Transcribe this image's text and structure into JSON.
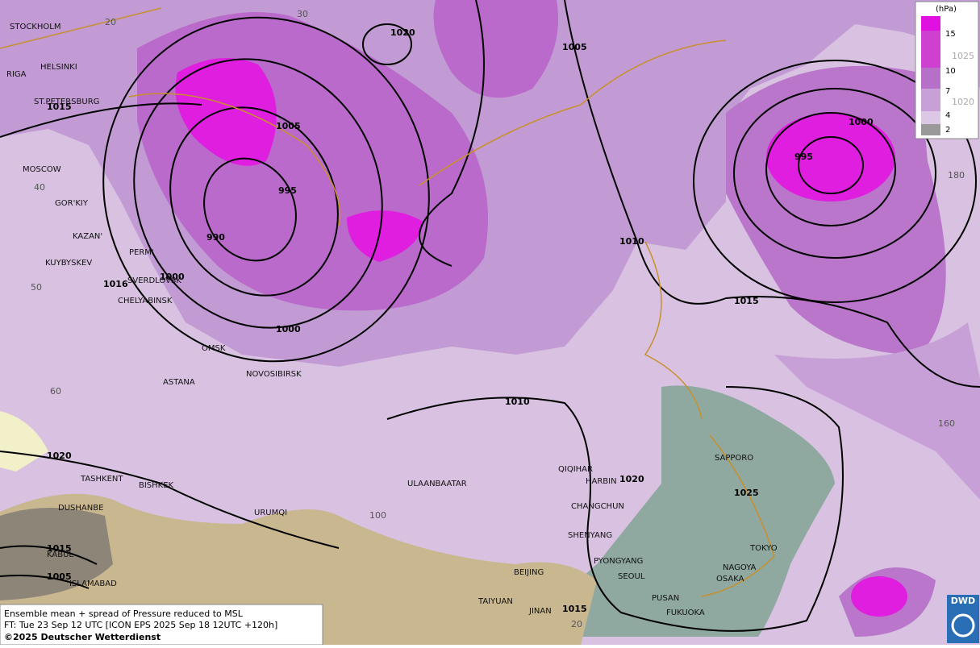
{
  "map": {
    "cities": [
      "STOCKHOLM",
      "HELSINKI",
      "RIGA",
      "ST.PETERSBURG",
      "MOSCOW",
      "GOR'KIY",
      "KAZAN'",
      "PERM'",
      "KUYBYSKEV",
      "SVERDLOVSK",
      "CHELYABINSK",
      "OMSK",
      "ASTANA",
      "NOVOSIBIRSK",
      "TASHKENT",
      "BISHKEK",
      "DUSHANBE",
      "URUMQI",
      "ULAANBAATAR",
      "QIQIHAR",
      "HARBIN",
      "CHANGCHUN",
      "SHENYANG",
      "PYONGYANG",
      "SEOUL",
      "BEIJING",
      "TAIYUAN",
      "JINAN",
      "PUSAN",
      "FUKUOKA",
      "OSAKA",
      "NAGOYA",
      "TOKYO",
      "SAPPORO",
      "KABUL",
      "ISLAMABAD"
    ],
    "isobar_labels": [
      1020,
      1005,
      1015,
      1005,
      995,
      990,
      1010,
      1000,
      995,
      1015,
      1016,
      1000,
      1000,
      1010,
      1020,
      1020,
      1025,
      1015,
      1005,
      1015
    ],
    "grid_labels": [
      20,
      30,
      40,
      50,
      60,
      100,
      180,
      160,
      20,
      1025,
      1020
    ]
  },
  "legend": {
    "unit": "(hPa)",
    "levels": [
      15,
      10,
      7,
      4,
      2
    ]
  },
  "footer": {
    "line1": "Ensemble mean + spread of Pressure reduced to MSL",
    "line2": "FT: Tue 23 Sep 12 UTC [ICON EPS 2025 Sep 18 12UTC +120h]",
    "line3": "©2025 Deutscher Wetterdienst"
  },
  "logo": "DWD"
}
